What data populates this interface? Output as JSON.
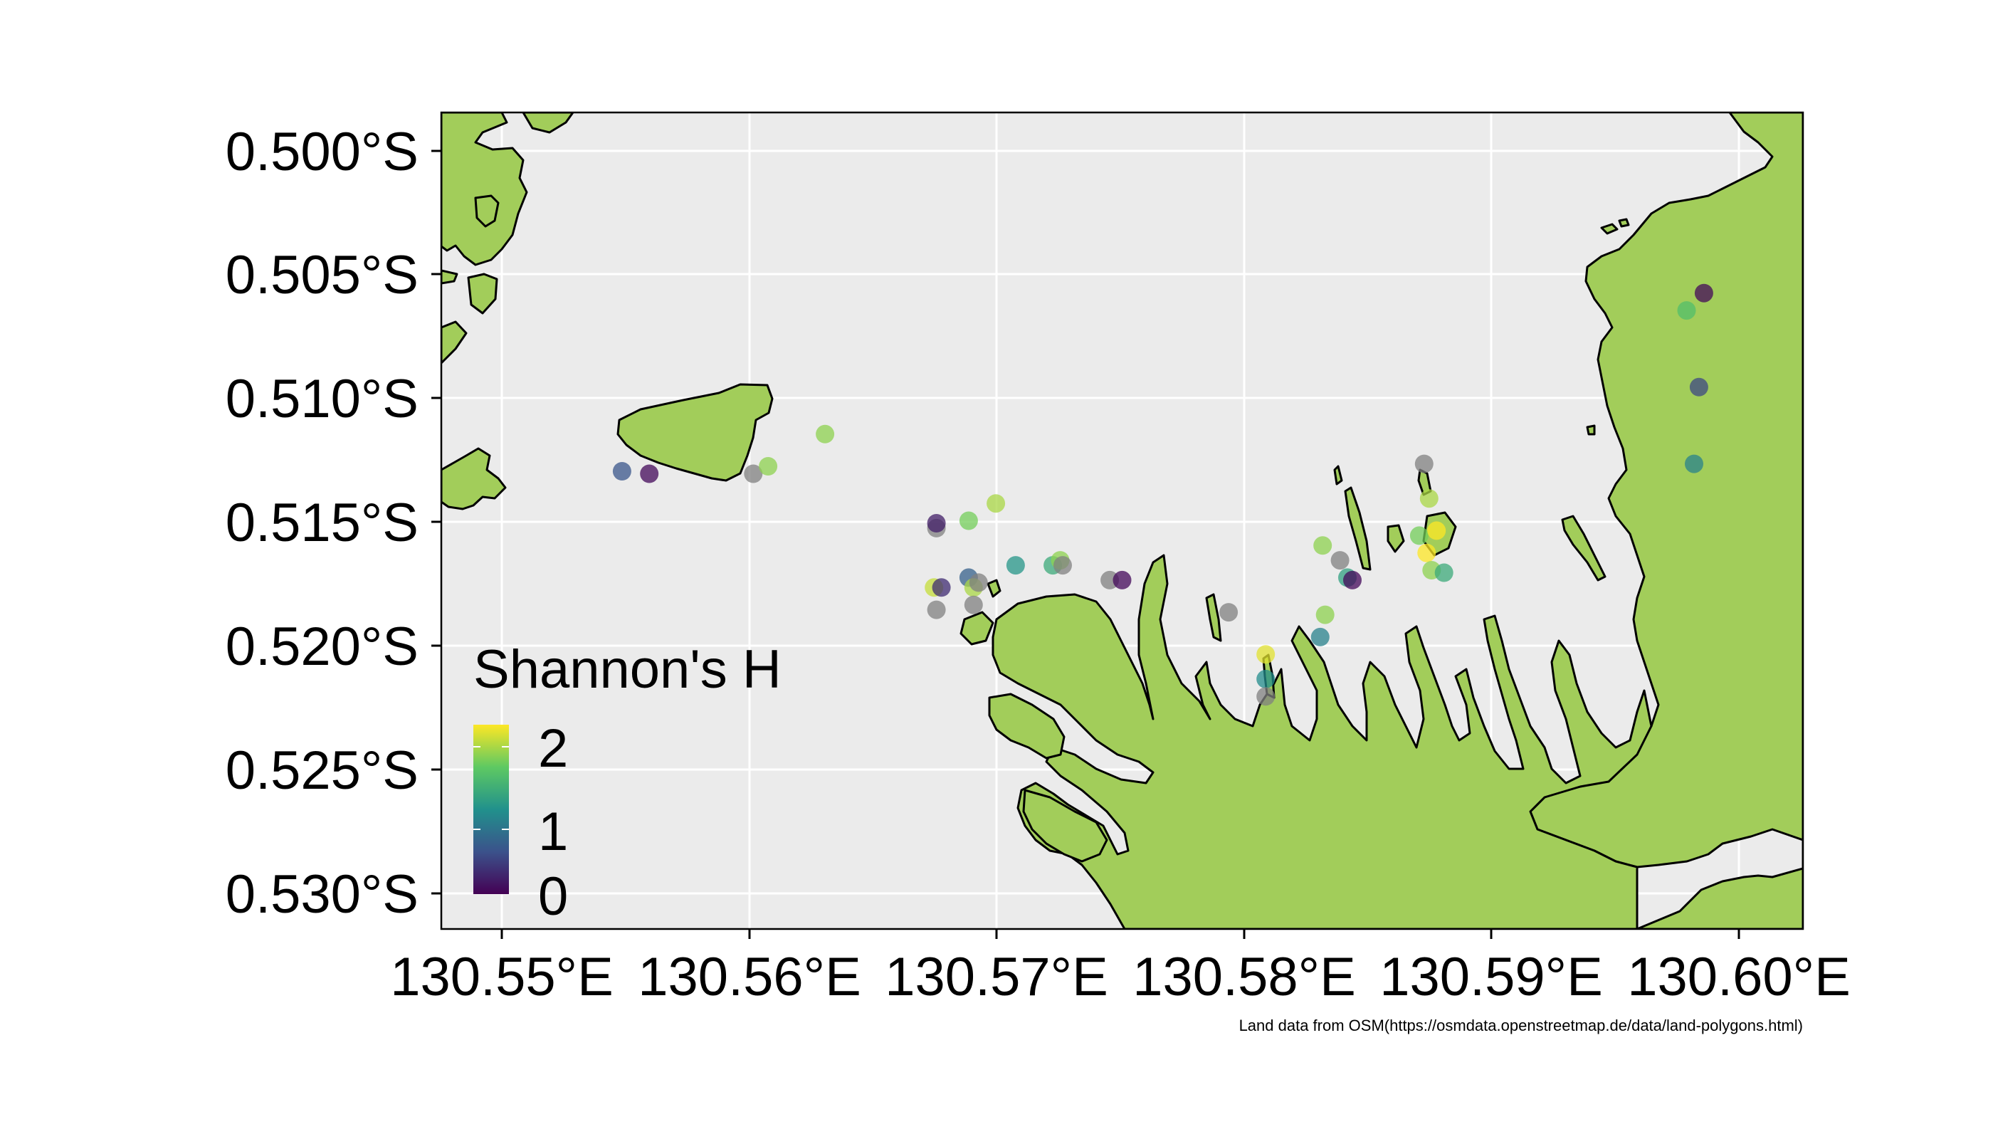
{
  "map": {
    "x_ticks": [
      {
        "value": 130.55,
        "label": "130.55°E"
      },
      {
        "value": 130.56,
        "label": "130.56°E"
      },
      {
        "value": 130.57,
        "label": "130.57°E"
      },
      {
        "value": 130.58,
        "label": "130.58°E"
      },
      {
        "value": 130.59,
        "label": "130.59°E"
      },
      {
        "value": 130.6,
        "label": "130.60°E"
      }
    ],
    "y_ticks": [
      {
        "value": -0.5,
        "label": "0.500°S"
      },
      {
        "value": -0.505,
        "label": "0.505°S"
      },
      {
        "value": -0.51,
        "label": "0.510°S"
      },
      {
        "value": -0.515,
        "label": "0.515°S"
      },
      {
        "value": -0.52,
        "label": "0.520°S"
      },
      {
        "value": -0.525,
        "label": "0.525°S"
      },
      {
        "value": -0.53,
        "label": "0.530°S"
      }
    ],
    "lon_range": [
      130.5475,
      130.6025
    ],
    "lat_range": [
      -0.5315,
      -0.4985
    ],
    "colors": {
      "panel_background": "#ebebeb",
      "grid": "#ffffff",
      "land": "#a2cd5a",
      "coast": "#000000",
      "na_point": "#808080"
    },
    "legend": {
      "title": "Shannon's H",
      "ticks": [
        {
          "value": 2,
          "label": "2"
        },
        {
          "value": 1,
          "label": "1"
        },
        {
          "value": 0,
          "label": "0"
        }
      ],
      "range": [
        0,
        2.3
      ],
      "palette": [
        "#440154",
        "#3b528b",
        "#21918c",
        "#5ec962",
        "#fde725"
      ],
      "placement": "bottom-left inside panel"
    },
    "caption": "Land data from OSM(https://osmdata.openstreetmap.de/data/land-polygons.html)",
    "sites": [
      {
        "lon": 130.5548,
        "lat": -0.513,
        "h": 0.6
      },
      {
        "lon": 130.5559,
        "lat": -0.5131,
        "h": 0.05
      },
      {
        "lon": 130.5601,
        "lat": -0.5131,
        "h": null
      },
      {
        "lon": 130.5607,
        "lat": -0.5128,
        "h": 1.9
      },
      {
        "lon": 130.563,
        "lat": -0.5115,
        "h": 1.9
      },
      {
        "lon": 130.5675,
        "lat": -0.5153,
        "h": null
      },
      {
        "lon": 130.5675,
        "lat": -0.5151,
        "h": 0.2
      },
      {
        "lon": 130.5688,
        "lat": -0.515,
        "h": 1.8
      },
      {
        "lon": 130.5699,
        "lat": -0.5143,
        "h": 2.0
      },
      {
        "lon": 130.5674,
        "lat": -0.5177,
        "h": 2.1
      },
      {
        "lon": 130.5677,
        "lat": -0.5177,
        "h": 0.3
      },
      {
        "lon": 130.5675,
        "lat": -0.5186,
        "h": null
      },
      {
        "lon": 130.5688,
        "lat": -0.5173,
        "h": 0.7
      },
      {
        "lon": 130.569,
        "lat": -0.5177,
        "h": 2.0
      },
      {
        "lon": 130.5692,
        "lat": -0.5175,
        "h": null
      },
      {
        "lon": 130.569,
        "lat": -0.5184,
        "h": null
      },
      {
        "lon": 130.5707,
        "lat": -0.5168,
        "h": 1.2
      },
      {
        "lon": 130.5722,
        "lat": -0.5168,
        "h": 1.4
      },
      {
        "lon": 130.5725,
        "lat": -0.5166,
        "h": 1.9
      },
      {
        "lon": 130.5726,
        "lat": -0.5168,
        "h": null
      },
      {
        "lon": 130.5745,
        "lat": -0.5174,
        "h": null
      },
      {
        "lon": 130.575,
        "lat": -0.5174,
        "h": 0.05
      },
      {
        "lon": 130.5793,
        "lat": -0.5187,
        "h": null
      },
      {
        "lon": 130.5808,
        "lat": -0.5204,
        "h": 2.2
      },
      {
        "lon": 130.5808,
        "lat": -0.5214,
        "h": 1.1
      },
      {
        "lon": 130.5808,
        "lat": -0.5221,
        "h": null
      },
      {
        "lon": 130.5831,
        "lat": -0.516,
        "h": 1.9
      },
      {
        "lon": 130.5838,
        "lat": -0.5166,
        "h": null
      },
      {
        "lon": 130.5841,
        "lat": -0.5173,
        "h": 1.3
      },
      {
        "lon": 130.5843,
        "lat": -0.5174,
        "h": 0.05
      },
      {
        "lon": 130.5832,
        "lat": -0.5188,
        "h": 1.9
      },
      {
        "lon": 130.583,
        "lat": -0.5197,
        "h": 1.0
      },
      {
        "lon": 130.5872,
        "lat": -0.5127,
        "h": null
      },
      {
        "lon": 130.5874,
        "lat": -0.5141,
        "h": 2.0
      },
      {
        "lon": 130.587,
        "lat": -0.5156,
        "h": 1.8
      },
      {
        "lon": 130.5877,
        "lat": -0.5154,
        "h": 2.3
      },
      {
        "lon": 130.5873,
        "lat": -0.5163,
        "h": 2.3
      },
      {
        "lon": 130.5875,
        "lat": -0.517,
        "h": 1.9
      },
      {
        "lon": 130.588,
        "lat": -0.5171,
        "h": 1.4
      },
      {
        "lon": 130.5978,
        "lat": -0.5065,
        "h": 1.6
      },
      {
        "lon": 130.5985,
        "lat": -0.5058,
        "h": 0.05
      },
      {
        "lon": 130.5983,
        "lat": -0.5096,
        "h": 0.5
      },
      {
        "lon": 130.5981,
        "lat": -0.5127,
        "h": 1.0
      }
    ]
  }
}
